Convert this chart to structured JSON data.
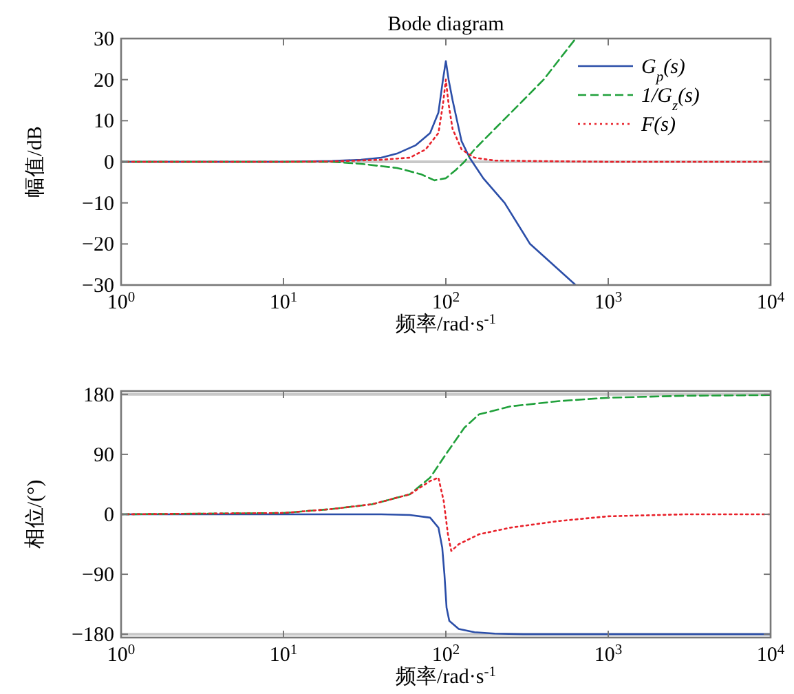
{
  "chart_data": [
    {
      "type": "line",
      "title": "Bode diagram",
      "xlabel": "频率/rad·s$^{-1}$",
      "ylabel": "幅值/dB",
      "log": "x",
      "xlim": [
        1,
        10000
      ],
      "xticks": [
        {
          "value": 1,
          "label": "10$^{0}$"
        },
        {
          "value": 10,
          "label": "10$^{1}$"
        },
        {
          "value": 100,
          "label": "10$^{2}$"
        },
        {
          "value": 1000,
          "label": "10$^{3}$"
        },
        {
          "value": 10000,
          "label": "10$^{4}$"
        }
      ],
      "ylim": [
        -30,
        30
      ],
      "yticks": [
        -30,
        -20,
        -10,
        0,
        10,
        20,
        30
      ],
      "grid": false,
      "legend": "top right",
      "ref_lines": [
        {
          "axis": "y",
          "value": 0,
          "label": null,
          "color": "#c8c8c8"
        }
      ],
      "series": [
        {
          "name": "G$_{p}$(s)",
          "color": "#2b4ea8",
          "line_style": "solid",
          "x": [
            1,
            10,
            20,
            30,
            40,
            50,
            65,
            80,
            90,
            96,
            100,
            104,
            110,
            125,
            140,
            170,
            230,
            330,
            630
          ],
          "values": [
            0,
            0,
            0.2,
            0.5,
            1,
            2,
            4,
            7,
            12,
            20,
            24.5,
            20,
            15,
            5,
            1,
            -4,
            -10,
            -20,
            -30
          ]
        },
        {
          "name": "1/G$_{z}$(s)",
          "color": "#1fa03a",
          "line_style": "dashed",
          "x": [
            1,
            10,
            20,
            30,
            50,
            70,
            85,
            100,
            115,
            130,
            150,
            200,
            300,
            400,
            630
          ],
          "values": [
            0,
            0,
            0,
            -0.5,
            -1.5,
            -3,
            -4.5,
            -4,
            -2,
            0,
            3,
            8,
            15,
            20,
            30
          ]
        },
        {
          "name": "F(s)",
          "color": "#e8212a",
          "line_style": "dotted",
          "x": [
            1,
            10,
            20,
            40,
            60,
            75,
            90,
            96,
            100,
            104,
            110,
            125,
            150,
            200,
            1000,
            10000
          ],
          "values": [
            0,
            0,
            0.1,
            0.5,
            1,
            3,
            7,
            14,
            20,
            14,
            8,
            3,
            1,
            0.3,
            0,
            0
          ]
        }
      ]
    },
    {
      "type": "line",
      "xlabel": "频率/rad·s$^{-1}$",
      "ylabel": "相位/(°)",
      "log": "x",
      "xlim": [
        1,
        10000
      ],
      "xticks": [
        {
          "value": 1,
          "label": "10$^{0}$"
        },
        {
          "value": 10,
          "label": "10$^{1}$"
        },
        {
          "value": 100,
          "label": "10$^{2}$"
        },
        {
          "value": 1000,
          "label": "10$^{3}$"
        },
        {
          "value": 10000,
          "label": "10$^{4}$"
        }
      ],
      "ylim": [
        -185,
        185
      ],
      "yticks": [
        -180,
        -90,
        0,
        90,
        180
      ],
      "grid": false,
      "ref_lines": [
        {
          "axis": "y",
          "value": 180,
          "label": null,
          "color": "#c8c8c8"
        },
        {
          "axis": "y",
          "value": -180,
          "label": null,
          "color": "#c8c8c8"
        }
      ],
      "series": [
        {
          "color": "#2b4ea8",
          "line_style": "solid",
          "x": [
            1,
            10,
            40,
            60,
            80,
            90,
            95,
            98,
            101,
            105,
            120,
            150,
            200,
            300,
            10000
          ],
          "values": [
            0,
            0,
            0,
            -1,
            -5,
            -20,
            -50,
            -90,
            -140,
            -160,
            -172,
            -177,
            -179,
            -180,
            -180
          ]
        },
        {
          "color": "#1fa03a",
          "line_style": "dashed",
          "x": [
            1,
            10,
            20,
            35,
            60,
            80,
            100,
            130,
            160,
            250,
            500,
            1000,
            3000,
            10000
          ],
          "values": [
            0,
            2,
            8,
            15,
            30,
            55,
            90,
            130,
            150,
            162,
            170,
            175,
            178,
            179
          ]
        },
        {
          "color": "#e8212a",
          "line_style": "dotted",
          "x": [
            1,
            10,
            20,
            35,
            60,
            80,
            90,
            97,
            103,
            108,
            120,
            160,
            250,
            500,
            1000,
            3000,
            10000
          ],
          "values": [
            0,
            2,
            8,
            15,
            30,
            50,
            55,
            20,
            -30,
            -55,
            -45,
            -30,
            -20,
            -10,
            -3,
            0,
            0
          ]
        }
      ]
    }
  ]
}
